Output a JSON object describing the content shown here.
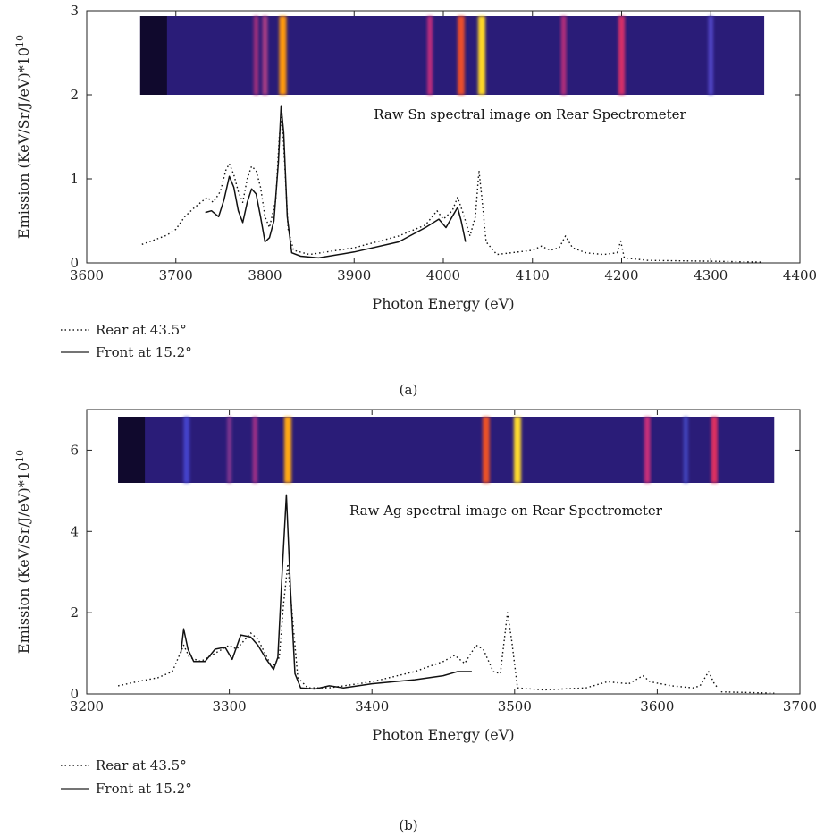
{
  "chart_data": [
    {
      "type": "line",
      "panel_label": "(a)",
      "xlabel": "Photon Energy (eV)",
      "ylabel": "Emission (KeV/Sr/J/eV)*10",
      "ylabel_exponent": "10",
      "xlim": [
        3600,
        4400
      ],
      "ylim": [
        0,
        3
      ],
      "xticks": [
        "3600",
        "3700",
        "3800",
        "3900",
        "4000",
        "4100",
        "4200",
        "4300",
        "4400"
      ],
      "yticks": [
        "0",
        "1",
        "2",
        "3"
      ],
      "inset_caption": "Raw Sn spectral image on Rear Spectrometer",
      "inset_image": {
        "x_start": 3660,
        "x_end": 4360,
        "base_color": "#2a1c78",
        "lines": [
          {
            "x": 3790,
            "color": "#b8347e",
            "strength": 0.5
          },
          {
            "x": 3800,
            "color": "#c04488",
            "strength": 0.6
          },
          {
            "x": 3820,
            "color": "#ff9a10",
            "strength": 1.0
          },
          {
            "x": 3985,
            "color": "#d8307e",
            "strength": 0.6
          },
          {
            "x": 4020,
            "color": "#f0502a",
            "strength": 0.95
          },
          {
            "x": 4043,
            "color": "#ffd828",
            "strength": 1.0
          },
          {
            "x": 4135,
            "color": "#c8307c",
            "strength": 0.6
          },
          {
            "x": 4200,
            "color": "#e03268",
            "strength": 0.85
          },
          {
            "x": 4300,
            "color": "#5a50d8",
            "strength": 0.5
          }
        ]
      },
      "series": [
        {
          "name": "Rear at 43.5°",
          "style": "dotted",
          "points": [
            [
              3662,
              0.22
            ],
            [
              3675,
              0.27
            ],
            [
              3690,
              0.33
            ],
            [
              3700,
              0.4
            ],
            [
              3710,
              0.55
            ],
            [
              3720,
              0.65
            ],
            [
              3728,
              0.72
            ],
            [
              3735,
              0.78
            ],
            [
              3742,
              0.72
            ],
            [
              3750,
              0.85
            ],
            [
              3756,
              1.1
            ],
            [
              3760,
              1.18
            ],
            [
              3765,
              1.05
            ],
            [
              3770,
              0.85
            ],
            [
              3775,
              0.72
            ],
            [
              3780,
              1.0
            ],
            [
              3785,
              1.15
            ],
            [
              3790,
              1.1
            ],
            [
              3795,
              0.9
            ],
            [
              3800,
              0.55
            ],
            [
              3805,
              0.42
            ],
            [
              3812,
              0.75
            ],
            [
              3816,
              1.5
            ],
            [
              3819,
              1.78
            ],
            [
              3822,
              1.2
            ],
            [
              3826,
              0.4
            ],
            [
              3832,
              0.15
            ],
            [
              3850,
              0.1
            ],
            [
              3900,
              0.18
            ],
            [
              3950,
              0.32
            ],
            [
              3980,
              0.45
            ],
            [
              3993,
              0.62
            ],
            [
              4000,
              0.52
            ],
            [
              4010,
              0.62
            ],
            [
              4016,
              0.78
            ],
            [
              4022,
              0.6
            ],
            [
              4030,
              0.32
            ],
            [
              4036,
              0.55
            ],
            [
              4040,
              1.1
            ],
            [
              4043,
              0.8
            ],
            [
              4048,
              0.25
            ],
            [
              4060,
              0.1
            ],
            [
              4100,
              0.15
            ],
            [
              4110,
              0.2
            ],
            [
              4120,
              0.15
            ],
            [
              4130,
              0.18
            ],
            [
              4137,
              0.32
            ],
            [
              4145,
              0.18
            ],
            [
              4160,
              0.12
            ],
            [
              4180,
              0.1
            ],
            [
              4195,
              0.12
            ],
            [
              4199,
              0.26
            ],
            [
              4203,
              0.06
            ],
            [
              4230,
              0.03
            ],
            [
              4300,
              0.02
            ],
            [
              4358,
              0.01
            ]
          ]
        },
        {
          "name": "Front at 15.2°",
          "style": "solid",
          "points": [
            [
              3733,
              0.6
            ],
            [
              3740,
              0.62
            ],
            [
              3748,
              0.55
            ],
            [
              3754,
              0.75
            ],
            [
              3760,
              1.03
            ],
            [
              3765,
              0.9
            ],
            [
              3770,
              0.62
            ],
            [
              3775,
              0.48
            ],
            [
              3780,
              0.72
            ],
            [
              3785,
              0.88
            ],
            [
              3790,
              0.82
            ],
            [
              3795,
              0.55
            ],
            [
              3800,
              0.25
            ],
            [
              3805,
              0.3
            ],
            [
              3810,
              0.5
            ],
            [
              3815,
              1.2
            ],
            [
              3818,
              1.87
            ],
            [
              3821,
              1.55
            ],
            [
              3825,
              0.55
            ],
            [
              3830,
              0.12
            ],
            [
              3840,
              0.08
            ],
            [
              3860,
              0.06
            ],
            [
              3900,
              0.13
            ],
            [
              3950,
              0.25
            ],
            [
              3980,
              0.42
            ],
            [
              3995,
              0.52
            ],
            [
              4003,
              0.42
            ],
            [
              4010,
              0.55
            ],
            [
              4016,
              0.66
            ],
            [
              4020,
              0.5
            ],
            [
              4025,
              0.25
            ]
          ]
        }
      ]
    },
    {
      "type": "line",
      "panel_label": "(b)",
      "xlabel": "Photon Energy (eV)",
      "ylabel": "Emission (KeV/Sr/J/eV)*10",
      "ylabel_exponent": "10",
      "xlim": [
        3200,
        3700
      ],
      "ylim": [
        0,
        7
      ],
      "xticks": [
        "3200",
        "3300",
        "3400",
        "3500",
        "3600",
        "3700"
      ],
      "yticks": [
        "0",
        "2",
        "4",
        "6"
      ],
      "inset_caption": "Raw Ag spectral image on Rear Spectrometer",
      "inset_image": {
        "x_start": 3222,
        "x_end": 3682,
        "base_color": "#2a1c78",
        "lines": [
          {
            "x": 3270,
            "color": "#4a48d8",
            "strength": 0.7
          },
          {
            "x": 3300,
            "color": "#9a3c96",
            "strength": 0.4
          },
          {
            "x": 3318,
            "color": "#b8348a",
            "strength": 0.5
          },
          {
            "x": 3341,
            "color": "#ffa814",
            "strength": 1.0
          },
          {
            "x": 3480,
            "color": "#f05226",
            "strength": 0.95
          },
          {
            "x": 3502,
            "color": "#ffdc2e",
            "strength": 1.0
          },
          {
            "x": 3593,
            "color": "#d8307a",
            "strength": 0.75
          },
          {
            "x": 3620,
            "color": "#4a50d0",
            "strength": 0.45
          },
          {
            "x": 3640,
            "color": "#e83060",
            "strength": 0.85
          }
        ]
      },
      "series": [
        {
          "name": "Rear at 43.5°",
          "style": "dotted",
          "points": [
            [
              3222,
              0.2
            ],
            [
              3235,
              0.3
            ],
            [
              3250,
              0.4
            ],
            [
              3260,
              0.55
            ],
            [
              3268,
              1.2
            ],
            [
              3272,
              0.9
            ],
            [
              3280,
              0.8
            ],
            [
              3290,
              1.0
            ],
            [
              3300,
              1.2
            ],
            [
              3305,
              1.1
            ],
            [
              3310,
              1.3
            ],
            [
              3315,
              1.5
            ],
            [
              3320,
              1.35
            ],
            [
              3325,
              1.0
            ],
            [
              3330,
              0.65
            ],
            [
              3335,
              0.9
            ],
            [
              3338,
              2.2
            ],
            [
              3341,
              3.2
            ],
            [
              3344,
              2.0
            ],
            [
              3348,
              0.4
            ],
            [
              3355,
              0.15
            ],
            [
              3370,
              0.15
            ],
            [
              3400,
              0.3
            ],
            [
              3430,
              0.55
            ],
            [
              3450,
              0.8
            ],
            [
              3458,
              0.95
            ],
            [
              3465,
              0.75
            ],
            [
              3473,
              1.2
            ],
            [
              3478,
              1.1
            ],
            [
              3485,
              0.55
            ],
            [
              3490,
              0.5
            ],
            [
              3495,
              2.0
            ],
            [
              3498,
              1.3
            ],
            [
              3502,
              0.15
            ],
            [
              3520,
              0.1
            ],
            [
              3550,
              0.15
            ],
            [
              3565,
              0.3
            ],
            [
              3580,
              0.25
            ],
            [
              3590,
              0.45
            ],
            [
              3595,
              0.3
            ],
            [
              3610,
              0.2
            ],
            [
              3625,
              0.15
            ],
            [
              3630,
              0.2
            ],
            [
              3636,
              0.55
            ],
            [
              3640,
              0.25
            ],
            [
              3645,
              0.05
            ],
            [
              3682,
              0.02
            ]
          ]
        },
        {
          "name": "Front at 15.2°",
          "style": "solid",
          "points": [
            [
              3266,
              1.0
            ],
            [
              3268,
              1.6
            ],
            [
              3271,
              1.1
            ],
            [
              3275,
              0.8
            ],
            [
              3283,
              0.8
            ],
            [
              3290,
              1.1
            ],
            [
              3297,
              1.15
            ],
            [
              3302,
              0.85
            ],
            [
              3308,
              1.45
            ],
            [
              3315,
              1.4
            ],
            [
              3320,
              1.2
            ],
            [
              3326,
              0.85
            ],
            [
              3331,
              0.6
            ],
            [
              3334,
              0.9
            ],
            [
              3337,
              3.0
            ],
            [
              3340,
              4.9
            ],
            [
              3343,
              2.5
            ],
            [
              3346,
              0.5
            ],
            [
              3350,
              0.15
            ],
            [
              3360,
              0.12
            ],
            [
              3370,
              0.2
            ],
            [
              3380,
              0.15
            ],
            [
              3400,
              0.25
            ],
            [
              3430,
              0.35
            ],
            [
              3450,
              0.45
            ],
            [
              3460,
              0.55
            ],
            [
              3470,
              0.55
            ]
          ]
        }
      ]
    }
  ]
}
